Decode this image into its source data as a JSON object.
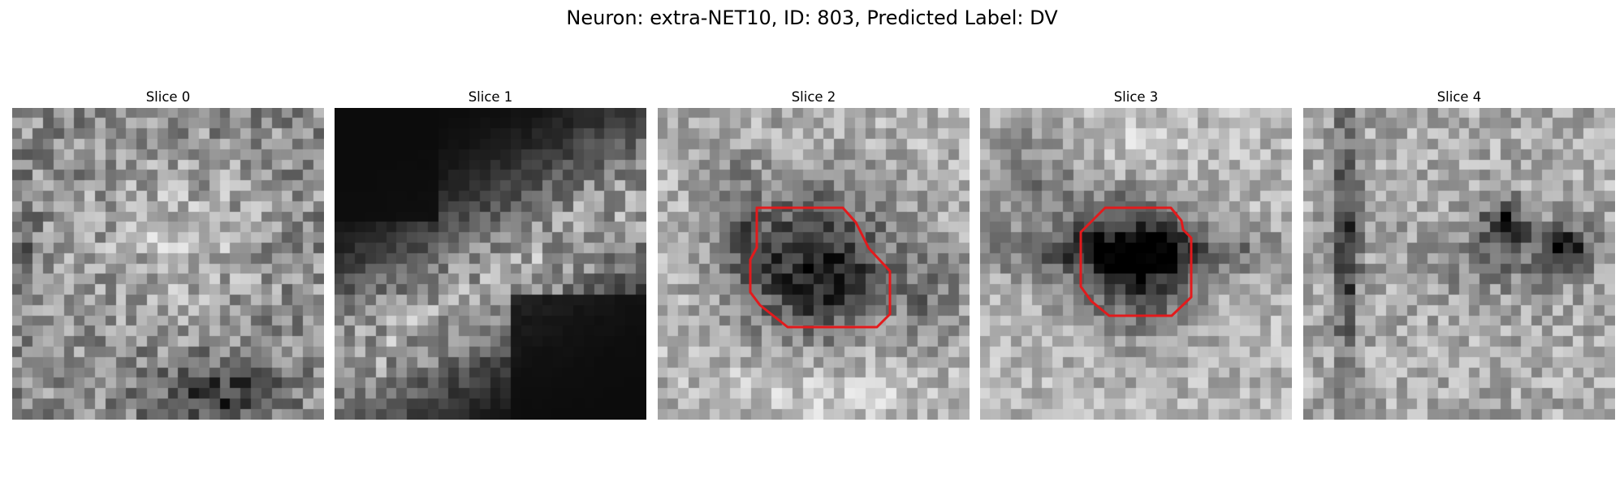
{
  "figure": {
    "title": "Neuron: extra-NET10, ID: 803, Predicted Label: DV"
  },
  "panels": [
    {
      "title": "Slice 0",
      "has_outline": false,
      "image_description": "grayscale noise texture, mid-gray with lighter center and dark blotch at lower-middle"
    },
    {
      "title": "Slice 1",
      "has_outline": false,
      "image_description": "mostly dark with a diagonal band of gray texture from left to upper-right"
    },
    {
      "title": "Slice 2",
      "has_outline": true,
      "image_description": "light gray background with dark round blob in center outlined in red"
    },
    {
      "title": "Slice 3",
      "has_outline": true,
      "image_description": "light gray background with dark horizontal band and dark round blob outlined in red"
    },
    {
      "title": "Slice 4",
      "has_outline": false,
      "image_description": "light gray texture with dark vertical streak on left and dark spots on right"
    }
  ],
  "colors": {
    "outline": "#e31a1c",
    "background": "#ffffff"
  }
}
